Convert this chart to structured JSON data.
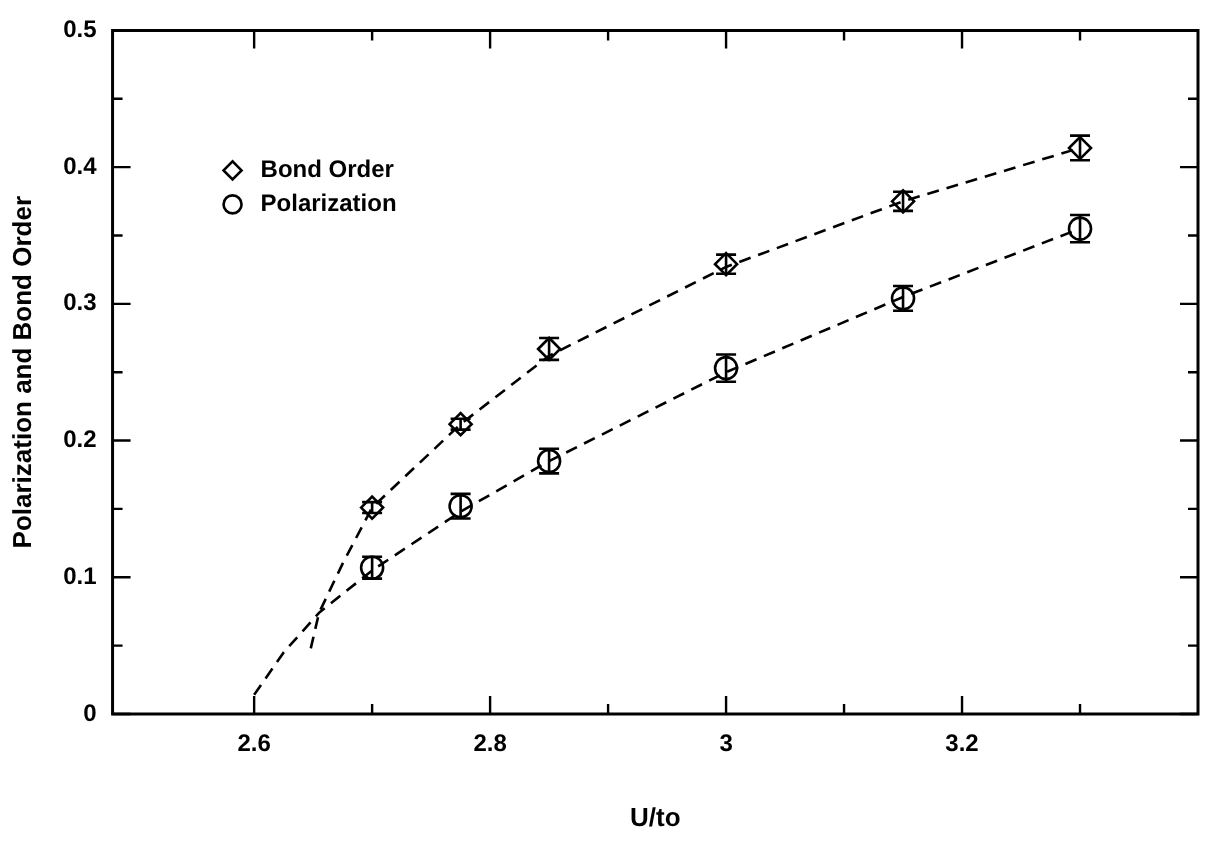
{
  "chart_data": {
    "type": "scatter",
    "xlabel": "U/to",
    "ylabel": "Polarization and Bond Order",
    "xlim": [
      2.48,
      3.4
    ],
    "ylim": [
      0,
      0.5
    ],
    "xticks": [
      2.6,
      {
        "value": 2.7,
        "label": null
      },
      2.8,
      {
        "value": 2.9,
        "label": null
      },
      3,
      {
        "value": 3.1,
        "label": null
      },
      3.2,
      {
        "value": 3.3,
        "label": null
      }
    ],
    "yticks": [
      0,
      {
        "value": 0.05,
        "label": null
      },
      0.1,
      {
        "value": 0.15,
        "label": null
      },
      0.2,
      {
        "value": 0.25,
        "label": null
      },
      0.3,
      {
        "value": 0.35,
        "label": null
      },
      0.4,
      {
        "value": 0.45,
        "label": null
      },
      0.5
    ],
    "grid": false,
    "legend": "top left",
    "series": [
      {
        "name": "Bond Order",
        "marker": "diamond",
        "color": "#000000",
        "x": [
          2.7,
          2.775,
          2.85,
          3.0,
          3.15,
          3.3
        ],
        "values": [
          0.151,
          0.212,
          0.267,
          0.329,
          0.375,
          0.414
        ],
        "errors": [
          0.004,
          0.004,
          0.008,
          0.007,
          0.007,
          0.009
        ]
      },
      {
        "name": "Polarization",
        "marker": "circle",
        "color": "#000000",
        "x": [
          2.7,
          2.775,
          2.85,
          3.0,
          3.15,
          3.3
        ],
        "values": [
          0.107,
          0.152,
          0.185,
          0.253,
          0.304,
          0.355
        ],
        "errors": [
          0.008,
          0.009,
          0.009,
          0.01,
          0.009,
          0.01
        ]
      },
      {
        "type": "line",
        "marker": "none",
        "line_style": "dashed",
        "color": "#000000",
        "x": [
          2.648,
          2.655,
          2.675,
          2.7,
          2.775,
          2.85,
          3.0,
          3.15,
          3.3
        ],
        "values": [
          0.048,
          0.074,
          0.11,
          0.151,
          0.212,
          0.262,
          0.327,
          0.375,
          0.414
        ]
      },
      {
        "type": "line",
        "marker": "none",
        "line_style": "dashed",
        "color": "#000000",
        "x": [
          2.6,
          2.625,
          2.655,
          2.7,
          2.775,
          2.85,
          3.0,
          3.15,
          3.3
        ],
        "values": [
          0.014,
          0.045,
          0.074,
          0.105,
          0.148,
          0.185,
          0.25,
          0.305,
          0.355
        ]
      }
    ]
  }
}
